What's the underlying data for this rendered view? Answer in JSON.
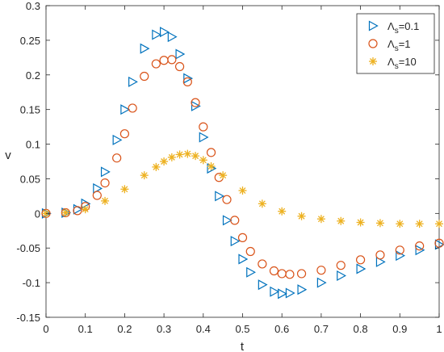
{
  "chart_data": {
    "type": "scatter",
    "title": "",
    "xlabel": "t",
    "ylabel": "v",
    "xlim": [
      0,
      1
    ],
    "ylim": [
      -0.15,
      0.3
    ],
    "xticks": [
      0,
      0.1,
      0.2,
      0.3,
      0.4,
      0.5,
      0.6,
      0.7,
      0.8,
      0.9,
      1
    ],
    "xtick_labels": [
      "0",
      "0.1",
      "0.2",
      "0.3",
      "0.4",
      "0.5",
      "0.6",
      "0.7",
      "0.8",
      "0.9",
      "1"
    ],
    "yticks": [
      -0.15,
      -0.1,
      -0.05,
      0,
      0.05,
      0.1,
      0.15,
      0.2,
      0.25,
      0.3
    ],
    "ytick_labels": [
      "-0.15",
      "-0.1",
      "-0.05",
      "0",
      "0.05",
      "0.1",
      "0.15",
      "0.2",
      "0.25",
      "0.3"
    ],
    "grid": false,
    "legend_position": "top-right",
    "colors": {
      "axis": "#262626",
      "background": "#ffffff"
    },
    "series": [
      {
        "name": "Λs=0.1",
        "legend_main": "Λ",
        "legend_sub": "s",
        "legend_value": "=0.1",
        "marker": "triangle-right",
        "color": "#0072BD",
        "x": [
          0,
          0.05,
          0.08,
          0.1,
          0.13,
          0.15,
          0.18,
          0.2,
          0.22,
          0.25,
          0.28,
          0.3,
          0.32,
          0.34,
          0.36,
          0.38,
          0.4,
          0.42,
          0.44,
          0.46,
          0.48,
          0.5,
          0.52,
          0.55,
          0.58,
          0.6,
          0.62,
          0.65,
          0.7,
          0.75,
          0.8,
          0.85,
          0.9,
          0.95,
          1.0
        ],
        "y": [
          0,
          0.001,
          0.006,
          0.014,
          0.036,
          0.06,
          0.106,
          0.15,
          0.19,
          0.238,
          0.258,
          0.262,
          0.255,
          0.23,
          0.195,
          0.155,
          0.11,
          0.065,
          0.025,
          -0.01,
          -0.04,
          -0.066,
          -0.085,
          -0.103,
          -0.113,
          -0.116,
          -0.115,
          -0.11,
          -0.1,
          -0.09,
          -0.08,
          -0.07,
          -0.061,
          -0.053,
          -0.045
        ]
      },
      {
        "name": "Λs=1",
        "legend_main": "Λ",
        "legend_sub": "s",
        "legend_value": "=1",
        "marker": "circle",
        "color": "#D95319",
        "x": [
          0,
          0.05,
          0.08,
          0.1,
          0.13,
          0.15,
          0.18,
          0.2,
          0.22,
          0.25,
          0.28,
          0.3,
          0.32,
          0.34,
          0.36,
          0.38,
          0.4,
          0.42,
          0.44,
          0.46,
          0.48,
          0.5,
          0.52,
          0.55,
          0.58,
          0.6,
          0.62,
          0.65,
          0.7,
          0.75,
          0.8,
          0.85,
          0.9,
          0.95,
          1.0
        ],
        "y": [
          0,
          0.001,
          0.004,
          0.01,
          0.026,
          0.044,
          0.08,
          0.115,
          0.152,
          0.198,
          0.216,
          0.221,
          0.222,
          0.212,
          0.19,
          0.16,
          0.125,
          0.088,
          0.052,
          0.02,
          -0.01,
          -0.035,
          -0.055,
          -0.073,
          -0.083,
          -0.087,
          -0.088,
          -0.087,
          -0.082,
          -0.075,
          -0.067,
          -0.06,
          -0.053,
          -0.047,
          -0.043
        ]
      },
      {
        "name": "Λs=10",
        "legend_main": "Λ",
        "legend_sub": "s",
        "legend_value": "=10",
        "marker": "asterisk",
        "color": "#EDB120",
        "x": [
          0,
          0.05,
          0.1,
          0.15,
          0.2,
          0.25,
          0.28,
          0.3,
          0.32,
          0.34,
          0.36,
          0.38,
          0.4,
          0.42,
          0.45,
          0.5,
          0.55,
          0.6,
          0.65,
          0.7,
          0.75,
          0.8,
          0.85,
          0.9,
          0.95,
          1.0
        ],
        "y": [
          0,
          0.001,
          0.006,
          0.018,
          0.035,
          0.055,
          0.067,
          0.075,
          0.081,
          0.085,
          0.086,
          0.083,
          0.077,
          0.068,
          0.055,
          0.033,
          0.014,
          0.003,
          -0.004,
          -0.008,
          -0.011,
          -0.013,
          -0.014,
          -0.015,
          -0.015,
          -0.015
        ]
      }
    ]
  }
}
